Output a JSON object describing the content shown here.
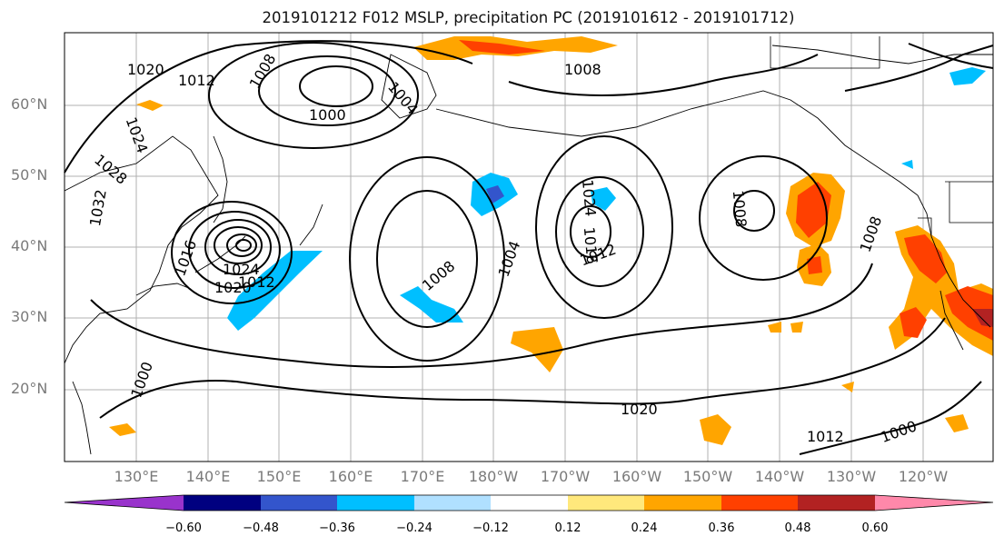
{
  "title": "2019101212 F012 MSLP, precipitation PC (2019101612 - 2019101712)",
  "lat_labels": [
    "60°N",
    "50°N",
    "40°N",
    "30°N",
    "20°N"
  ],
  "lon_labels": [
    "130°E",
    "140°E",
    "150°E",
    "160°E",
    "170°E",
    "180°W",
    "170°W",
    "160°W",
    "150°W",
    "140°W",
    "130°W",
    "120°W"
  ],
  "isobar_labels": [
    "1020",
    "1012",
    "1008",
    "1000",
    "1004",
    "1024",
    "1028",
    "1032",
    "1016",
    "1024",
    "1020",
    "1012",
    "1008",
    "1004",
    "1024",
    "1016",
    "1012",
    "1008",
    "1008",
    "1020",
    "1012",
    "1000",
    "1000",
    "1008"
  ],
  "colorbar": {
    "tick_labels": [
      "−0.60",
      "−0.48",
      "−0.36",
      "−0.24",
      "−0.12",
      "0.12",
      "0.24",
      "0.36",
      "0.48",
      "0.60"
    ],
    "colors": [
      "#9933cc",
      "#000080",
      "#3355cc",
      "#00bfff",
      "#b0e0ff",
      "#ffffff",
      "#ffe87c",
      "#ffa500",
      "#ff4000",
      "#b22222",
      "#ff88aa"
    ]
  }
}
